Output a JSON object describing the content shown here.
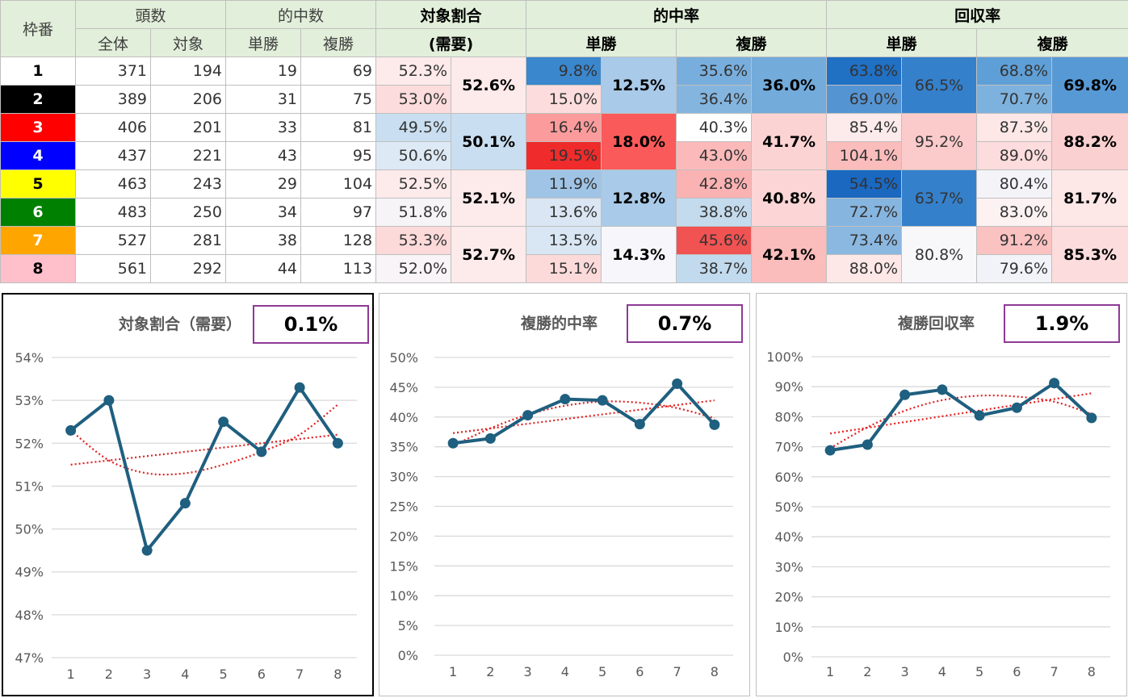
{
  "table": {
    "headers": {
      "frame": "枠番",
      "heads": "頭数",
      "heads_all": "全体",
      "heads_target": "対象",
      "hits": "的中数",
      "hits_win": "単勝",
      "hits_place": "複勝",
      "target_ratio": "対象割合",
      "target_ratio_sub": "(需要)",
      "hit_rate": "的中率",
      "hit_rate_win": "単勝",
      "hit_rate_place": "複勝",
      "return_rate": "回収率",
      "return_rate_win": "単勝",
      "return_rate_place": "複勝"
    },
    "rows": [
      {
        "frame": "1",
        "all": "371",
        "target": "194",
        "win_hits": "19",
        "place_hits": "69",
        "ratio": "52.3%",
        "win_rate": "9.8%",
        "place_rate": "35.6%",
        "win_ret": "63.8%",
        "place_ret": "68.8%"
      },
      {
        "frame": "2",
        "all": "389",
        "target": "206",
        "win_hits": "31",
        "place_hits": "75",
        "ratio": "53.0%",
        "win_rate": "15.0%",
        "place_rate": "36.4%",
        "win_ret": "69.0%",
        "place_ret": "70.7%"
      },
      {
        "frame": "3",
        "all": "406",
        "target": "201",
        "win_hits": "33",
        "place_hits": "81",
        "ratio": "49.5%",
        "win_rate": "16.4%",
        "place_rate": "40.3%",
        "win_ret": "85.4%",
        "place_ret": "87.3%"
      },
      {
        "frame": "4",
        "all": "437",
        "target": "221",
        "win_hits": "43",
        "place_hits": "95",
        "ratio": "50.6%",
        "win_rate": "19.5%",
        "place_rate": "43.0%",
        "win_ret": "104.1%",
        "place_ret": "89.0%"
      },
      {
        "frame": "5",
        "all": "463",
        "target": "243",
        "win_hits": "29",
        "place_hits": "104",
        "ratio": "52.5%",
        "win_rate": "11.9%",
        "place_rate": "42.8%",
        "win_ret": "54.5%",
        "place_ret": "80.4%"
      },
      {
        "frame": "6",
        "all": "483",
        "target": "250",
        "win_hits": "34",
        "place_hits": "97",
        "ratio": "51.8%",
        "win_rate": "13.6%",
        "place_rate": "38.8%",
        "win_ret": "72.7%",
        "place_ret": "83.0%"
      },
      {
        "frame": "7",
        "all": "527",
        "target": "281",
        "win_hits": "38",
        "place_hits": "128",
        "ratio": "53.3%",
        "win_rate": "13.5%",
        "place_rate": "45.6%",
        "win_ret": "73.4%",
        "place_ret": "91.2%"
      },
      {
        "frame": "8",
        "all": "561",
        "target": "292",
        "win_hits": "44",
        "place_hits": "113",
        "ratio": "52.0%",
        "win_rate": "15.1%",
        "place_rate": "38.7%",
        "win_ret": "88.0%",
        "place_ret": "79.6%"
      }
    ],
    "pairs": [
      {
        "ratio": "52.6%",
        "win_rate": "12.5%",
        "place_rate": "36.0%",
        "win_ret": "66.5%",
        "place_ret": "69.8%"
      },
      {
        "ratio": "50.1%",
        "win_rate": "18.0%",
        "place_rate": "41.7%",
        "win_ret": "95.2%",
        "place_ret": "88.2%"
      },
      {
        "ratio": "52.1%",
        "win_rate": "12.8%",
        "place_rate": "40.8%",
        "win_ret": "63.7%",
        "place_ret": "81.7%"
      },
      {
        "ratio": "52.7%",
        "win_rate": "14.3%",
        "place_rate": "42.1%",
        "win_ret": "80.8%",
        "place_ret": "85.3%"
      }
    ],
    "frame_colors": [
      {
        "bg": "#ffffff",
        "fg": "#000000"
      },
      {
        "bg": "#000000",
        "fg": "#ffffff"
      },
      {
        "bg": "#ff0000",
        "fg": "#ffffff"
      },
      {
        "bg": "#0000ff",
        "fg": "#ffffff"
      },
      {
        "bg": "#ffff00",
        "fg": "#000000"
      },
      {
        "bg": "#008000",
        "fg": "#ffffff"
      },
      {
        "bg": "#ffa500",
        "fg": "#ffffff"
      },
      {
        "bg": "#ffc0cb",
        "fg": "#000000"
      }
    ],
    "cell_colors": {
      "ratio": [
        "#fdeaea",
        "#fcdcdc",
        "#c9def0",
        "#dde9f5",
        "#fdeaea",
        "#f7f4f8",
        "#fcdada",
        "#f8f4f7"
      ],
      "ratio_pair": [
        "#fdeaea",
        "#c9def0",
        "#fdeaea",
        "#fdeaea"
      ],
      "win_rate": [
        "#3a87cd",
        "#fcdcdc",
        "#fb9b9b",
        "#ef2b2b",
        "#9fc4e6",
        "#dae6f3",
        "#d9e6f3",
        "#fcdada"
      ],
      "win_rate_pair": [
        "#a9cae8",
        "#fa5a5a",
        "#a9cae8",
        "#f7f7fb"
      ],
      "place_rate": [
        "#78aedd",
        "#84b5df",
        "#ffffff",
        "#fbb9b9",
        "#fbb2b2",
        "#c4dbee",
        "#f15252",
        "#c2daee"
      ],
      "place_rate_pair": [
        "#73abdb",
        "#fcd3d3",
        "#fcd6d6",
        "#fbbcbc"
      ],
      "win_ret": [
        "#2070c4",
        "#5594d3",
        "#fdeaea",
        "#fbbcbc",
        "#1a68c0",
        "#86b5df",
        "#8bb8e1",
        "#fde7e7"
      ],
      "win_ret_pair": [
        "#3580cb",
        "#fbcaca",
        "#3580cb",
        "#f8f8fb"
      ],
      "place_ret": [
        "#5f9fd7",
        "#7eb2de",
        "#fde7e7",
        "#fcdcdc",
        "#f4f3f8",
        "#fdf2f2",
        "#fbc2c2",
        "#f1f3f8"
      ],
      "place_ret_pair": [
        "#5799d5",
        "#fbd0d0",
        "#fde7e7",
        "#fcdcdc"
      ]
    }
  },
  "panels": [
    {
      "title": "対象割合（需要）",
      "value_box": "0.1%"
    },
    {
      "title": "複勝的中率",
      "value_box": "0.7%"
    },
    {
      "title": "複勝回収率",
      "value_box": "1.9%"
    }
  ],
  "chart_data": [
    {
      "type": "line",
      "title": "対象割合（需要）",
      "categories": [
        "1",
        "2",
        "3",
        "4",
        "5",
        "6",
        "7",
        "8"
      ],
      "series": [
        {
          "values": [
            52.3,
            53.0,
            49.5,
            50.6,
            52.5,
            51.8,
            53.3,
            52.0
          ]
        }
      ],
      "trendlines": [
        {
          "kind": "linear",
          "values": [
            51.5,
            52.2
          ]
        },
        {
          "kind": "polynomial",
          "values": [
            52.3,
            51.6,
            51.3,
            51.3,
            51.5,
            51.8,
            52.2,
            52.9
          ]
        }
      ],
      "ylim": [
        47,
        54
      ],
      "yticks": [
        "47%",
        "48%",
        "49%",
        "50%",
        "51%",
        "52%",
        "53%",
        "54%"
      ],
      "grid": true,
      "line_color": "#1f5f7f",
      "trend_color": "#e02020"
    },
    {
      "type": "line",
      "title": "複勝的中率",
      "categories": [
        "1",
        "2",
        "3",
        "4",
        "5",
        "6",
        "7",
        "8"
      ],
      "series": [
        {
          "values": [
            35.6,
            36.4,
            40.3,
            43.0,
            42.8,
            38.8,
            45.6,
            38.7
          ]
        }
      ],
      "trendlines": [
        {
          "kind": "linear",
          "values": [
            37.3,
            42.8
          ]
        },
        {
          "kind": "polynomial",
          "values": [
            35.2,
            38.1,
            40.4,
            41.9,
            42.6,
            42.4,
            41.5,
            39.8
          ]
        }
      ],
      "ylim": [
        0,
        50
      ],
      "yticks": [
        "0%",
        "5%",
        "10%",
        "15%",
        "20%",
        "25%",
        "30%",
        "35%",
        "40%",
        "45%",
        "50%"
      ],
      "grid": true,
      "line_color": "#1f5f7f",
      "trend_color": "#e02020"
    },
    {
      "type": "line",
      "title": "複勝回収率",
      "categories": [
        "1",
        "2",
        "3",
        "4",
        "5",
        "6",
        "7",
        "8"
      ],
      "series": [
        {
          "values": [
            68.8,
            70.7,
            87.3,
            89.0,
            80.4,
            83.0,
            91.2,
            79.6
          ]
        }
      ],
      "trendlines": [
        {
          "kind": "linear",
          "values": [
            74.4,
            87.8
          ]
        },
        {
          "kind": "polynomial",
          "values": [
            69.5,
            76.5,
            82.0,
            85.5,
            87.0,
            86.7,
            85.0,
            80.9
          ]
        }
      ],
      "ylim": [
        0,
        100
      ],
      "yticks": [
        "0%",
        "10%",
        "20%",
        "30%",
        "40%",
        "50%",
        "60%",
        "70%",
        "80%",
        "90%",
        "100%"
      ],
      "grid": true,
      "line_color": "#1f5f7f",
      "trend_color": "#e02020"
    }
  ]
}
